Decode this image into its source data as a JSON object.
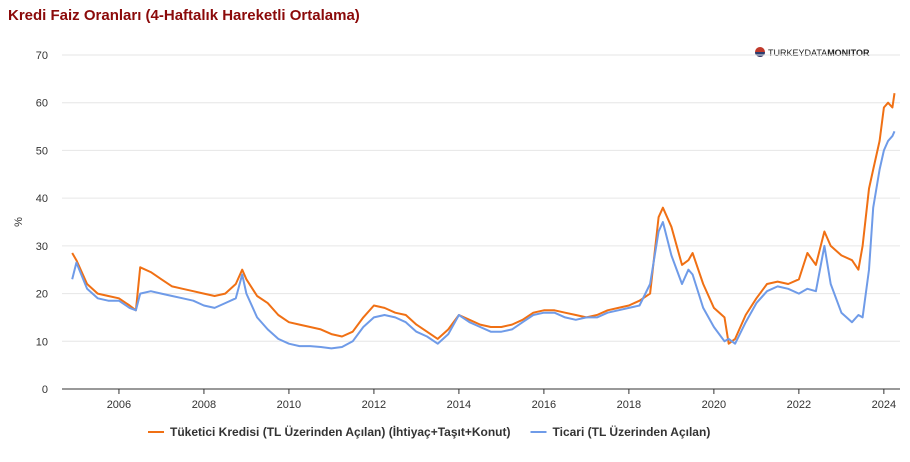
{
  "chart_data": {
    "type": "line",
    "title": "Kredi Faiz Oranları (4-Haftalık Hareketli Ortalama)",
    "y_label": "%",
    "logo": [
      "TURKEY",
      "DATA",
      "MONITOR"
    ],
    "x": [
      2004.9,
      2005.0,
      2005.25,
      2005.5,
      2005.75,
      2006.0,
      2006.25,
      2006.4,
      2006.5,
      2006.75,
      2007.0,
      2007.25,
      2007.5,
      2007.75,
      2008.0,
      2008.25,
      2008.5,
      2008.75,
      2008.9,
      2009.0,
      2009.25,
      2009.5,
      2009.75,
      2010.0,
      2010.25,
      2010.5,
      2010.75,
      2011.0,
      2011.25,
      2011.5,
      2011.75,
      2012.0,
      2012.25,
      2012.5,
      2012.75,
      2013.0,
      2013.25,
      2013.5,
      2013.75,
      2014.0,
      2014.25,
      2014.5,
      2014.75,
      2015.0,
      2015.25,
      2015.5,
      2015.75,
      2016.0,
      2016.25,
      2016.5,
      2016.75,
      2017.0,
      2017.25,
      2017.5,
      2017.75,
      2018.0,
      2018.25,
      2018.5,
      2018.7,
      2018.8,
      2019.0,
      2019.25,
      2019.4,
      2019.5,
      2019.75,
      2020.0,
      2020.25,
      2020.35,
      2020.5,
      2020.75,
      2021.0,
      2021.25,
      2021.5,
      2021.75,
      2022.0,
      2022.2,
      2022.4,
      2022.6,
      2022.75,
      2023.0,
      2023.25,
      2023.4,
      2023.5,
      2023.65,
      2023.75,
      2023.9,
      2024.0,
      2024.1,
      2024.2,
      2024.25
    ],
    "series": [
      {
        "name": "Tüketici Kredisi (TL Üzerinden Açılan) (İhtiyaç+Taşıt+Konut)",
        "color": "#f07014",
        "values": [
          28.5,
          27,
          22,
          20,
          19.5,
          19,
          17.5,
          16.5,
          25.5,
          24.5,
          23,
          21.5,
          21,
          20.5,
          20,
          19.5,
          20,
          22,
          25,
          23,
          19.5,
          18,
          15.5,
          14,
          13.5,
          13,
          12.5,
          11.5,
          11,
          12,
          15,
          17.5,
          17,
          16,
          15.5,
          13.5,
          12,
          10.5,
          12.5,
          15.5,
          14.5,
          13.5,
          13,
          13,
          13.5,
          14.5,
          16,
          16.5,
          16.5,
          16,
          15.5,
          15,
          15.5,
          16.5,
          17,
          17.5,
          18.5,
          20,
          36,
          38,
          34,
          26,
          27,
          28.5,
          22,
          17,
          15,
          9.5,
          10.5,
          15.5,
          19,
          22,
          22.5,
          22,
          23,
          28.5,
          26,
          33,
          30,
          28,
          27,
          25,
          30,
          42,
          46,
          52,
          59,
          60,
          59,
          62
        ]
      },
      {
        "name": "Ticari (TL Üzerinden Açılan)",
        "color": "#6f9be8",
        "values": [
          23,
          26.5,
          21,
          19,
          18.5,
          18.5,
          17,
          16.5,
          20,
          20.5,
          20,
          19.5,
          19,
          18.5,
          17.5,
          17,
          18,
          19,
          24,
          20,
          15,
          12.5,
          10.5,
          9.5,
          9,
          9,
          8.8,
          8.5,
          8.8,
          10,
          13,
          15,
          15.5,
          15,
          14,
          12,
          11,
          9.5,
          11.5,
          15.5,
          14,
          13,
          12,
          12,
          12.5,
          14,
          15.5,
          16,
          16,
          15,
          14.5,
          15,
          15,
          16,
          16.5,
          17,
          17.5,
          22,
          33,
          35,
          28,
          22,
          25,
          24,
          17,
          13,
          10,
          10.5,
          9.5,
          14,
          18,
          20.5,
          21.5,
          21,
          20,
          21,
          20.5,
          30,
          22,
          16,
          14,
          15.5,
          15,
          25,
          38,
          46,
          50,
          52,
          53,
          54
        ]
      }
    ],
    "xlim": [
      2004.66,
      2024.38
    ],
    "xticks": [
      2006,
      2008,
      2010,
      2012,
      2014,
      2016,
      2018,
      2020,
      2022,
      2024
    ],
    "ylim": [
      0,
      70
    ],
    "yticks": [
      0,
      10,
      20,
      30,
      40,
      50,
      60,
      70
    ],
    "grid": true,
    "legend": "bottom"
  }
}
